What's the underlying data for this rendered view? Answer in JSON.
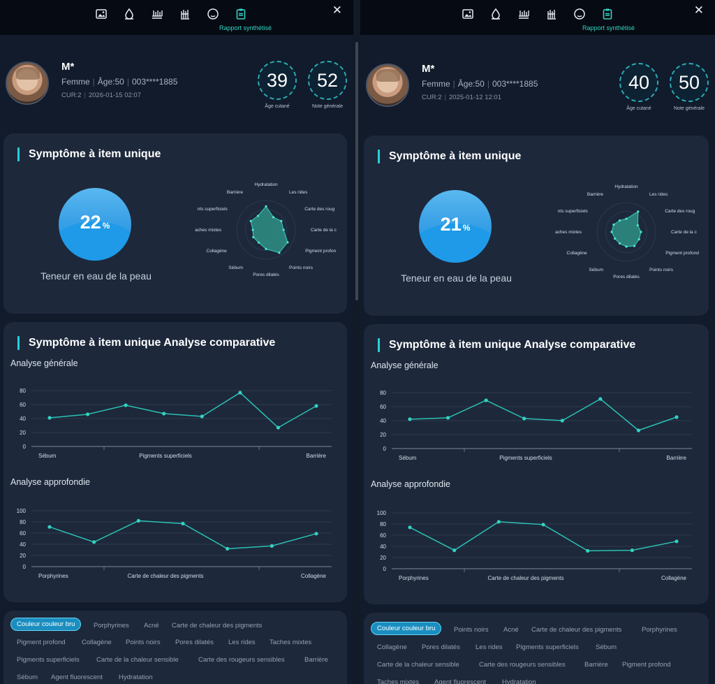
{
  "toolbar": {
    "icons": [
      "image-icon",
      "droplet-icon",
      "comb-icon",
      "brush-icon",
      "face-icon",
      "clipboard-icon"
    ],
    "active_label": "Rapport synthétisé"
  },
  "reports": [
    {
      "profile": {
        "name": "M*",
        "gender": "Femme",
        "age": "Âge:50",
        "phone": "003****1885",
        "cur": "CUR:2",
        "date": "2026-01-15 02:07",
        "skin_age": "39",
        "skin_age_label": "Âge cutané",
        "score": "52",
        "score_label": "Note générale"
      },
      "single": {
        "title": "Symptôme à item unique",
        "water_percent": "22",
        "water_unit": "%",
        "water_caption": "Teneur en eau de la peau",
        "radar_labels": [
          "Hydratation",
          "Les rides",
          "Carte des roug",
          "Carte de la c",
          "Pigment profon",
          "Points noirs",
          "Pores dilatés",
          "Sébum",
          "Collagène",
          "aches mixtes",
          "nts superficiels",
          "Barrière"
        ],
        "radar_values": [
          0.8,
          0.5,
          0.6,
          0.6,
          0.85,
          0.9,
          0.65,
          0.5,
          0.5,
          0.45,
          0.6,
          0.55
        ]
      },
      "compare": {
        "title": "Symptôme à item unique Analyse comparative",
        "general_title": "Analyse générale",
        "deep_title": "Analyse approfondie"
      },
      "chart_data": [
        {
          "type": "line",
          "title": "Analyse générale",
          "x_labels": [
            "Sébum",
            "Pigments superficiels",
            "Barrière"
          ],
          "values": [
            41,
            46,
            59,
            47,
            43,
            77,
            27,
            58
          ],
          "ylim": [
            0,
            80
          ],
          "yticks": [
            0,
            20,
            40,
            60,
            80
          ],
          "grid": true
        },
        {
          "type": "line",
          "title": "Analyse approfondie",
          "x_labels": [
            "Porphyrines",
            "Carte de chaleur des pigments",
            "Collagène"
          ],
          "values": [
            71,
            44,
            82,
            77,
            32,
            37,
            59
          ],
          "ylim": [
            0,
            100
          ],
          "yticks": [
            0,
            20,
            40,
            60,
            80,
            100
          ],
          "grid": true
        }
      ],
      "tags": [
        "Couleur couleur bru",
        "Porphyrines",
        "Acné",
        "Carte de chaleur des pigments",
        "Pigment profond",
        "Collagène",
        "Points noirs",
        "Pores dilatés",
        "Les rides",
        "Taches mixtes",
        "Pigments superficiels",
        "Carte de la chaleur sensible",
        "Carte des rougeurs sensibles",
        "Barrière",
        "Sébum",
        "Agent fluorescent",
        "Hydratation"
      ]
    },
    {
      "profile": {
        "name": "M*",
        "gender": "Femme",
        "age": "Âge:50",
        "phone": "003****1885",
        "cur": "CUR:2",
        "date": "2025-01-12 12:01",
        "skin_age": "40",
        "skin_age_label": "Âge cutané",
        "score": "50",
        "score_label": "Note générale"
      },
      "single": {
        "title": "Symptôme à item unique",
        "water_percent": "21",
        "water_unit": "%",
        "water_caption": "Teneur en eau de la peau",
        "radar_labels": [
          "Hydratation",
          "Les rides",
          "Carte des roug",
          "Carte de la c",
          "Pigment profond",
          "Points noirs",
          "Pores dilatés",
          "Sébum",
          "Collagène",
          "aches mixtes",
          "nts superficiels",
          "Barrière"
        ],
        "radar_values": [
          0.45,
          0.8,
          0.45,
          0.5,
          0.5,
          0.55,
          0.5,
          0.45,
          0.45,
          0.5,
          0.5,
          0.45
        ]
      },
      "compare": {
        "title": "Symptôme à item unique Analyse comparative",
        "general_title": "Analyse générale",
        "deep_title": "Analyse approfondie"
      },
      "chart_data": [
        {
          "type": "line",
          "title": "Analyse générale",
          "x_labels": [
            "Sébum",
            "Pigments superficiels",
            "Barrière"
          ],
          "values": [
            42,
            44,
            69,
            43,
            40,
            71,
            26,
            45
          ],
          "ylim": [
            0,
            80
          ],
          "yticks": [
            0,
            20,
            40,
            60,
            80
          ],
          "grid": true
        },
        {
          "type": "line",
          "title": "Analyse approfondie",
          "x_labels": [
            "Porphyrines",
            "Carte de chaleur des pigments",
            "Collagène"
          ],
          "values": [
            74,
            33,
            84,
            79,
            32,
            33,
            49
          ],
          "ylim": [
            0,
            100
          ],
          "yticks": [
            0,
            20,
            40,
            60,
            80,
            100
          ],
          "grid": true
        }
      ],
      "tags": [
        "Couleur couleur bru",
        "Points noirs",
        "Acné",
        "Carte de chaleur des pigments",
        "Porphyrines",
        "Collagène",
        "Pores dilatés",
        "Les rides",
        "Pigments superficiels",
        "Sébum",
        "Carte de la chaleur sensible",
        "Carte des rougeurs sensibles",
        "Barrière",
        "Pigment profond",
        "Taches mixtes",
        "Agent fluorescent",
        "Hydratation"
      ]
    }
  ],
  "colors": {
    "accent": "#35d4c3",
    "chart_line": "#2bc1b3",
    "water": "#2ea0ea",
    "active_tag": "#1a8ec0"
  }
}
